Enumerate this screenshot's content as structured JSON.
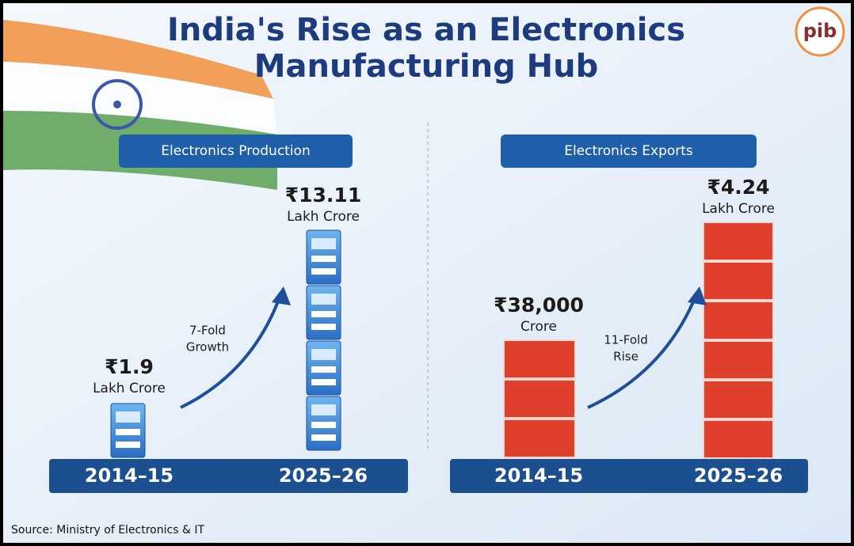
{
  "header": {
    "title_line1": "India's Rise as an Electronics",
    "title_line2": "Manufacturing Hub",
    "logo": "pib"
  },
  "panels": [
    {
      "label": "Electronics Production",
      "growth": [
        "7-Fold",
        "Growth"
      ],
      "items": [
        {
          "year": "2014–15",
          "value": "₹1.9",
          "unit": "Lakh Crore"
        },
        {
          "year": "2025–26",
          "value": "₹13.11",
          "unit": "Lakh Crore"
        }
      ]
    },
    {
      "label": "Electronics Exports",
      "growth": [
        "11-Fold",
        "Rise"
      ],
      "items": [
        {
          "year": "2014–15",
          "value": "₹38,000",
          "unit": "Crore"
        },
        {
          "year": "2025–26",
          "value": "₹4.24",
          "unit": "Lakh Crore"
        }
      ]
    }
  ],
  "source": "Source: Ministry of Electronics & IT"
}
